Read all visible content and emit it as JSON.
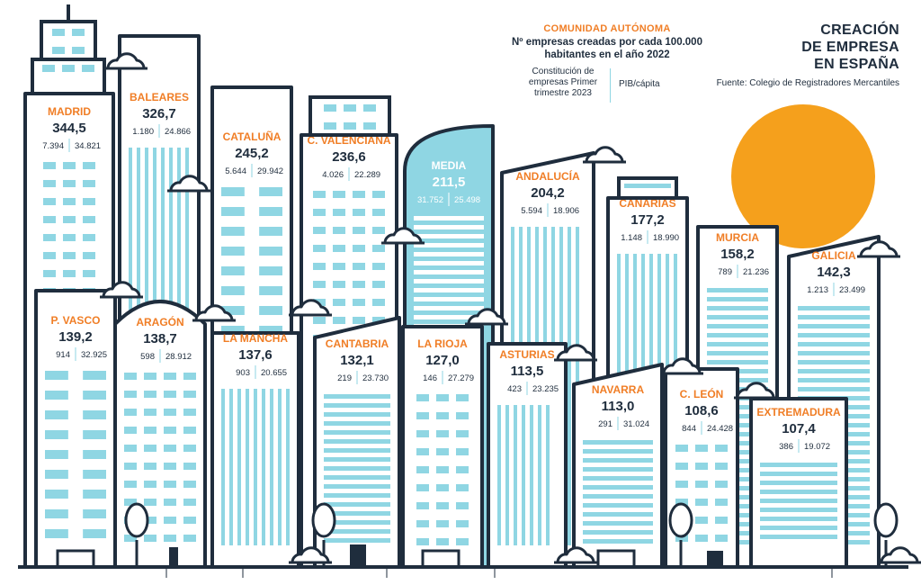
{
  "title_lines": [
    "CREACIÓN",
    "DE EMPRESA",
    "EN ESPAÑA"
  ],
  "source": "Fuente: Colegio de Registradores Mercantiles",
  "legend": {
    "name": "COMUNIDAD AUTÓNOMA",
    "metric": "Nº empresas creadas por cada 100.000 habitantes en el año 2022",
    "left_metric": "Constitución de empresas Primer trimestre 2023",
    "right_metric": "PIB/cápita"
  },
  "colors": {
    "outline": "#1f2d3d",
    "window": "#8fd6e3",
    "accent": "#f07e26",
    "media_fill": "#8fd6e3",
    "sun": "#f5a01c"
  },
  "chart_data": {
    "type": "bar",
    "categories": [
      "MADRID",
      "BALEARES",
      "CATALUÑA",
      "C. VALENCIANA",
      "MEDIA",
      "ANDALUCÍA",
      "CANARIAS",
      "MURCIA",
      "GALICIA",
      "P. VASCO",
      "ARAGÓN",
      "LA MANCHA",
      "CANTABRIA",
      "LA RIOJA",
      "ASTURIAS",
      "NAVARRA",
      "C. LEÓN",
      "EXTREMADURA"
    ],
    "series": [
      {
        "name": "Nº empresas creadas por cada 100.000 habitantes en el año 2022",
        "values": [
          "344,5",
          "326,7",
          "245,2",
          "236,6",
          "211,5",
          "204,2",
          "177,2",
          "158,2",
          "142,3",
          "139,2",
          "138,7",
          "137,6",
          "132,1",
          "127,0",
          "113,5",
          "113,0",
          "108,6",
          "107,4"
        ]
      },
      {
        "name": "Constitución de empresas Primer trimestre 2023",
        "values": [
          "7.394",
          "1.180",
          "5.644",
          "4.026",
          "31.752",
          "5.594",
          "1.148",
          "789",
          "1.213",
          "914",
          "598",
          "903",
          "219",
          "146",
          "423",
          "291",
          "844",
          "386"
        ]
      },
      {
        "name": "PIB/cápita",
        "values": [
          "34.821",
          "24.866",
          "29.942",
          "22.289",
          "25.498",
          "18.906",
          "18.990",
          "21.236",
          "23.499",
          "32.925",
          "28.912",
          "20.655",
          "23.730",
          "27.279",
          "23.235",
          "31.024",
          "24.428",
          "19.072"
        ]
      }
    ]
  }
}
